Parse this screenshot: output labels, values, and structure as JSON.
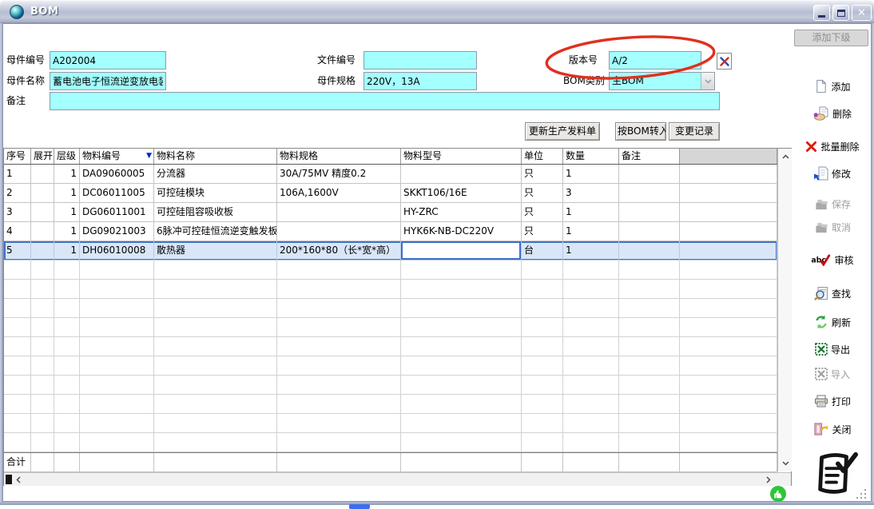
{
  "window": {
    "title": "BOM"
  },
  "form": {
    "parent_code": {
      "label": "母件编号",
      "value": "A202004"
    },
    "doc_code": {
      "label": "文件编号",
      "value": ""
    },
    "version": {
      "label": "版本号",
      "value": "A/2"
    },
    "parent_name": {
      "label": "母件名称",
      "value": "蓄电池电子恒流逆变放电装"
    },
    "parent_spec": {
      "label": "母件规格",
      "value": "220V，13A"
    },
    "bom_type": {
      "label": "BOM类别",
      "value": "主BOM"
    },
    "remark": {
      "label": "备注",
      "value": ""
    }
  },
  "toolbar": {
    "update_issue": "更新生产发料单",
    "bom_transfer": "按BOM转入",
    "change_log": "变更记录"
  },
  "sidebar": {
    "add_child": "添加下级",
    "items": [
      {
        "id": "add",
        "label": "添加",
        "icon": "new-document-icon",
        "enabled": true
      },
      {
        "id": "delete",
        "label": "删除",
        "icon": "delete-hand-icon",
        "enabled": true
      },
      {
        "id": "batch-delete",
        "label": "批量删除",
        "icon": "red-x-icon",
        "enabled": true
      },
      {
        "id": "modify",
        "label": "修改",
        "icon": "edit-document-icon",
        "enabled": true
      },
      {
        "id": "save",
        "label": "保存",
        "icon": "save-folders-icon",
        "enabled": false
      },
      {
        "id": "cancel",
        "label": "取消",
        "icon": "cancel-folders-icon",
        "enabled": false
      },
      {
        "id": "audit",
        "label": "审核",
        "icon": "abc-check-icon",
        "enabled": true
      },
      {
        "id": "find",
        "label": "查找",
        "icon": "search-icon",
        "enabled": true
      },
      {
        "id": "refresh",
        "label": "刷新",
        "icon": "refresh-icon",
        "enabled": true
      },
      {
        "id": "export",
        "label": "导出",
        "icon": "excel-export-icon",
        "enabled": true
      },
      {
        "id": "import",
        "label": "导入",
        "icon": "excel-import-icon",
        "enabled": false
      },
      {
        "id": "print",
        "label": "打印",
        "icon": "printer-icon",
        "enabled": true
      },
      {
        "id": "close",
        "label": "关闭",
        "icon": "exit-door-icon",
        "enabled": true
      }
    ]
  },
  "table": {
    "columns": [
      "序号",
      "展开",
      "层级",
      "物料编号",
      "物料名称",
      "物料规格",
      "物料型号",
      "单位",
      "数量",
      "备注",
      ""
    ],
    "sort": {
      "column": "物料编号",
      "direction": "desc"
    },
    "rows": [
      [
        "1",
        "",
        "1",
        "DA09060005",
        "分流器",
        "30A/75MV 精度0.2",
        "",
        "只",
        "1",
        ""
      ],
      [
        "2",
        "",
        "1",
        "DC06011005",
        "可控硅模块",
        "106A,1600V",
        "SKKT106/16E",
        "只",
        "3",
        ""
      ],
      [
        "3",
        "",
        "1",
        "DG06011001",
        "可控硅阻容吸收板",
        "",
        "HY-ZRC",
        "只",
        "1",
        ""
      ],
      [
        "4",
        "",
        "1",
        "DG09021003",
        "6脉冲可控硅恒流逆变触发板",
        "",
        "HYK6K-NB-DC220V",
        "只",
        "1",
        ""
      ],
      [
        "5",
        "",
        "1",
        "DH06010008",
        "散热器",
        "200*160*80（长*宽*高）",
        "",
        "台",
        "1",
        ""
      ]
    ],
    "selected_row_index": 4,
    "editing_column_index": 6,
    "footer_label": "合计"
  },
  "colors": {
    "field_cyan": "#A4FFFF",
    "annotation_red": "#E0301E",
    "selection_blue": "#D9E6F8",
    "selection_border": "#4374C0"
  }
}
